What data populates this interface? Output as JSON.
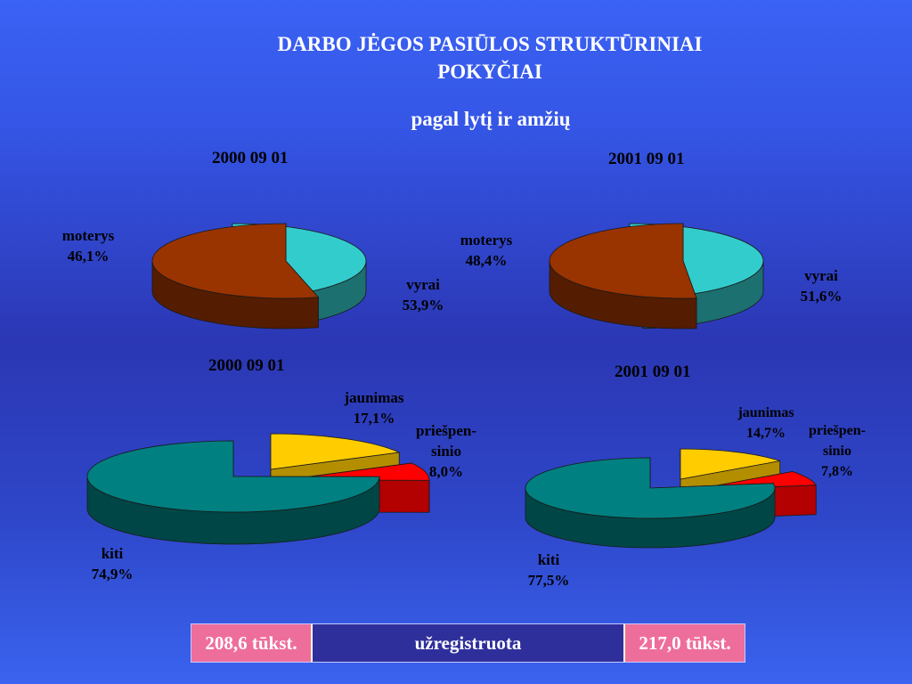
{
  "title_line1": "DARBO JĖGOS PASIŪLOS STRUKTŪRINIAI",
  "title_line2": "POKYČIAI",
  "subtitle": "pagal lytį ir amžių",
  "chart_data": [
    {
      "type": "pie",
      "date": "2000 09 01",
      "slices": [
        {
          "label": "moterys",
          "value_text": "46,1%",
          "value": 46.1,
          "color": "#33cccc"
        },
        {
          "label": "vyrai",
          "value_text": "53,9%",
          "value": 53.9,
          "color": "#993300"
        }
      ]
    },
    {
      "type": "pie",
      "date": "2001 09 01",
      "slices": [
        {
          "label": "moterys",
          "value_text": "48,4%",
          "value": 48.4,
          "color": "#33cccc"
        },
        {
          "label": "vyrai",
          "value_text": "51,6%",
          "value": 51.6,
          "color": "#993300"
        }
      ]
    },
    {
      "type": "pie",
      "date": "2000 09 01",
      "slices": [
        {
          "label": "jaunimas",
          "value_text": "17,1%",
          "value": 17.1,
          "color": "#ffcc00"
        },
        {
          "label_line1": "priešpen-",
          "label_line2": "sinio",
          "value_text": "8,0%",
          "value": 8.0,
          "color": "#ff0000"
        },
        {
          "label": "kiti",
          "value_text": "74,9%",
          "value": 74.9,
          "color": "#008080"
        }
      ]
    },
    {
      "type": "pie",
      "date": "2001 09 01",
      "slices": [
        {
          "label": "jaunimas",
          "value_text": "14,7%",
          "value": 14.7,
          "color": "#ffcc00"
        },
        {
          "label_line1": "priešpen-",
          "label_line2": "sinio",
          "value_text": "7,8%",
          "value": 7.8,
          "color": "#ff0000"
        },
        {
          "label": "kiti",
          "value_text": "77,5%",
          "value": 77.5,
          "color": "#008080"
        }
      ]
    }
  ],
  "footer": {
    "left": "208,6 tūkst.",
    "middle": "užregistruota",
    "right": "217,0 tūkst."
  }
}
